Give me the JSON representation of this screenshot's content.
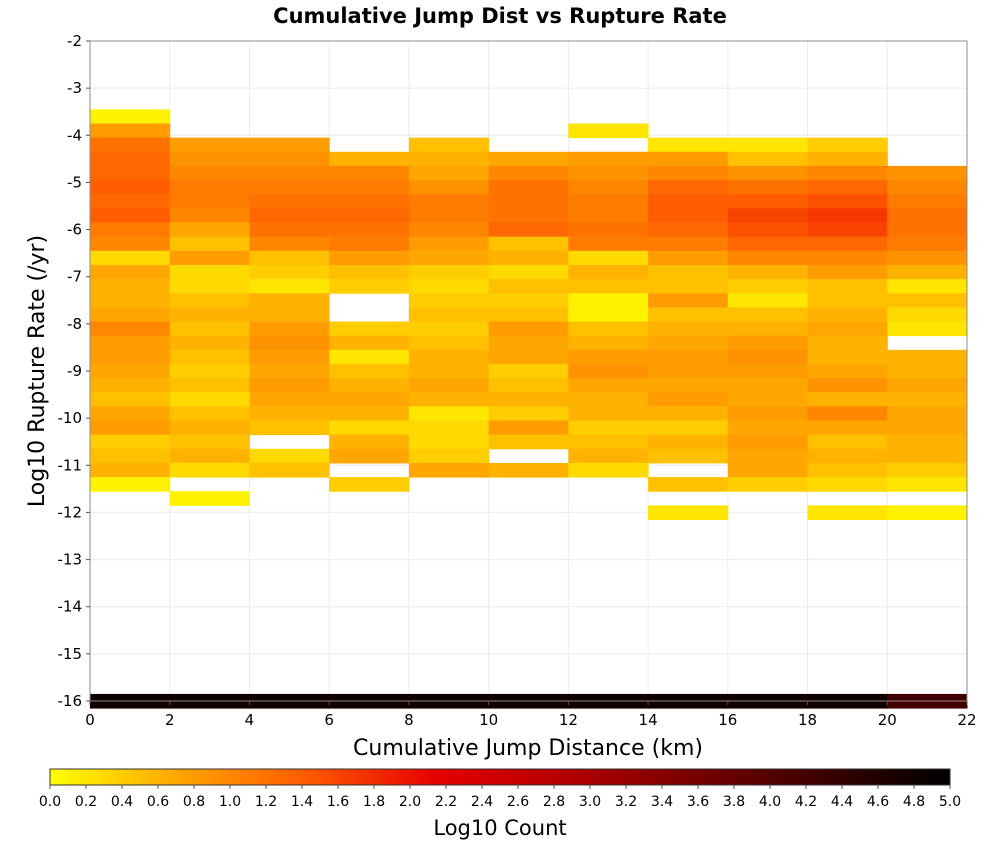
{
  "chart_data": {
    "type": "heatmap",
    "title": "Cumulative Jump Dist vs Rupture Rate",
    "xlabel": "Cumulative Jump Distance (km)",
    "ylabel": "Log10 Rupture Rate (/yr)",
    "xlim": [
      0,
      22
    ],
    "ylim": [
      -16,
      -2
    ],
    "x_ticks": [
      0,
      2,
      4,
      6,
      8,
      10,
      12,
      14,
      16,
      18,
      20,
      22
    ],
    "y_ticks": [
      -2,
      -3,
      -4,
      -5,
      -6,
      -7,
      -8,
      -9,
      -10,
      -11,
      -12,
      -13,
      -14,
      -15,
      -16
    ],
    "x_bin_width": 2,
    "y_bin_height": 0.3,
    "grid": true,
    "colorbar": {
      "label": "Log10 Count",
      "min": 0.0,
      "max": 5.0,
      "ticks": [
        "0.0",
        "0.2",
        "0.4",
        "0.6",
        "0.8",
        "1.0",
        "1.2",
        "1.4",
        "1.6",
        "1.8",
        "2.0",
        "2.2",
        "2.4",
        "2.6",
        "2.8",
        "3.0",
        "3.2",
        "3.4",
        "3.6",
        "3.8",
        "4.0",
        "4.2",
        "4.4",
        "4.6",
        "4.8",
        "5.0"
      ],
      "colors": [
        "#ffff00",
        "#ffa500",
        "#ff5a00",
        "#e60000",
        "#b40000",
        "#780000",
        "#3c0000",
        "#000000"
      ],
      "placement": "bottom"
    },
    "columns": [
      {
        "x0": 0,
        "cells": [
          [
            -3.6,
            0.1
          ],
          [
            -3.9,
            0.8
          ],
          [
            -4.2,
            1.2
          ],
          [
            -4.5,
            1.3
          ],
          [
            -4.8,
            1.3
          ],
          [
            -5.1,
            1.4
          ],
          [
            -5.4,
            1.3
          ],
          [
            -5.7,
            1.4
          ],
          [
            -6.0,
            1.1
          ],
          [
            -6.3,
            1.0
          ],
          [
            -6.6,
            0.3
          ],
          [
            -6.9,
            0.7
          ],
          [
            -7.2,
            0.6
          ],
          [
            -7.5,
            0.6
          ],
          [
            -7.8,
            0.7
          ],
          [
            -8.1,
            1.0
          ],
          [
            -8.4,
            0.8
          ],
          [
            -8.7,
            0.8
          ],
          [
            -9.0,
            0.7
          ],
          [
            -9.3,
            0.6
          ],
          [
            -9.6,
            0.5
          ],
          [
            -9.9,
            0.7
          ],
          [
            -10.2,
            0.8
          ],
          [
            -10.5,
            0.4
          ],
          [
            -10.8,
            0.5
          ],
          [
            -11.1,
            0.6
          ],
          [
            -11.4,
            0.1
          ],
          [
            -16.0,
            4.8
          ]
        ]
      },
      {
        "x0": 2,
        "cells": [
          [
            -4.2,
            0.8
          ],
          [
            -4.5,
            0.9
          ],
          [
            -4.8,
            1.0
          ],
          [
            -5.1,
            1.1
          ],
          [
            -5.4,
            1.1
          ],
          [
            -5.7,
            1.0
          ],
          [
            -6.0,
            0.7
          ],
          [
            -6.3,
            0.5
          ],
          [
            -6.6,
            0.8
          ],
          [
            -6.9,
            0.3
          ],
          [
            -7.2,
            0.3
          ],
          [
            -7.5,
            0.5
          ],
          [
            -7.8,
            0.6
          ],
          [
            -8.1,
            0.5
          ],
          [
            -8.4,
            0.6
          ],
          [
            -8.7,
            0.5
          ],
          [
            -9.0,
            0.4
          ],
          [
            -9.3,
            0.5
          ],
          [
            -9.6,
            0.3
          ],
          [
            -9.9,
            0.5
          ],
          [
            -10.2,
            0.6
          ],
          [
            -10.5,
            0.5
          ],
          [
            -10.8,
            0.6
          ],
          [
            -11.1,
            0.3
          ],
          [
            -11.7,
            0.1
          ],
          [
            -16.0,
            4.8
          ]
        ]
      },
      {
        "x0": 4,
        "cells": [
          [
            -4.2,
            0.8
          ],
          [
            -4.5,
            0.9
          ],
          [
            -4.8,
            1.0
          ],
          [
            -5.1,
            1.1
          ],
          [
            -5.4,
            1.2
          ],
          [
            -5.7,
            1.3
          ],
          [
            -6.0,
            1.2
          ],
          [
            -6.3,
            1.0
          ],
          [
            -6.6,
            0.5
          ],
          [
            -6.9,
            0.4
          ],
          [
            -7.2,
            0.2
          ],
          [
            -7.5,
            0.6
          ],
          [
            -7.8,
            0.6
          ],
          [
            -8.1,
            0.8
          ],
          [
            -8.4,
            0.9
          ],
          [
            -8.7,
            0.8
          ],
          [
            -9.0,
            0.7
          ],
          [
            -9.3,
            0.8
          ],
          [
            -9.6,
            0.7
          ],
          [
            -9.9,
            0.6
          ],
          [
            -10.2,
            0.5
          ],
          [
            -10.8,
            0.3
          ],
          [
            -11.1,
            0.5
          ],
          [
            -16.0,
            4.8
          ]
        ]
      },
      {
        "x0": 6,
        "cells": [
          [
            -4.5,
            0.6
          ],
          [
            -4.8,
            1.0
          ],
          [
            -5.1,
            1.1
          ],
          [
            -5.4,
            1.2
          ],
          [
            -5.7,
            1.3
          ],
          [
            -6.0,
            1.2
          ],
          [
            -6.3,
            1.1
          ],
          [
            -6.6,
            0.8
          ],
          [
            -6.9,
            0.5
          ],
          [
            -7.2,
            0.4
          ],
          [
            -8.1,
            0.4
          ],
          [
            -8.4,
            0.6
          ],
          [
            -8.7,
            0.2
          ],
          [
            -9.0,
            0.5
          ],
          [
            -9.3,
            0.6
          ],
          [
            -9.6,
            0.7
          ],
          [
            -9.9,
            0.6
          ],
          [
            -10.2,
            0.3
          ],
          [
            -10.5,
            0.6
          ],
          [
            -10.8,
            0.7
          ],
          [
            -11.4,
            0.4
          ],
          [
            -16.0,
            4.8
          ]
        ]
      },
      {
        "x0": 8,
        "cells": [
          [
            -4.2,
            0.5
          ],
          [
            -4.5,
            0.6
          ],
          [
            -4.8,
            0.7
          ],
          [
            -5.1,
            0.9
          ],
          [
            -5.4,
            1.1
          ],
          [
            -5.7,
            1.1
          ],
          [
            -6.0,
            1.0
          ],
          [
            -6.3,
            0.8
          ],
          [
            -6.6,
            0.7
          ],
          [
            -6.9,
            0.4
          ],
          [
            -7.2,
            0.3
          ],
          [
            -7.5,
            0.4
          ],
          [
            -7.8,
            0.5
          ],
          [
            -8.1,
            0.4
          ],
          [
            -8.4,
            0.5
          ],
          [
            -8.7,
            0.6
          ],
          [
            -9.0,
            0.6
          ],
          [
            -9.3,
            0.7
          ],
          [
            -9.6,
            0.6
          ],
          [
            -9.9,
            0.2
          ],
          [
            -10.2,
            0.3
          ],
          [
            -10.5,
            0.3
          ],
          [
            -10.8,
            0.4
          ],
          [
            -11.1,
            0.7
          ],
          [
            -16.0,
            4.8
          ]
        ]
      },
      {
        "x0": 10,
        "cells": [
          [
            -4.5,
            0.7
          ],
          [
            -4.8,
            1.0
          ],
          [
            -5.1,
            1.2
          ],
          [
            -5.4,
            1.2
          ],
          [
            -5.7,
            1.2
          ],
          [
            -6.0,
            1.3
          ],
          [
            -6.3,
            0.5
          ],
          [
            -6.6,
            0.6
          ],
          [
            -6.9,
            0.3
          ],
          [
            -7.2,
            0.5
          ],
          [
            -7.5,
            0.4
          ],
          [
            -7.8,
            0.5
          ],
          [
            -8.1,
            0.8
          ],
          [
            -8.4,
            0.7
          ],
          [
            -8.7,
            0.7
          ],
          [
            -9.0,
            0.4
          ],
          [
            -9.3,
            0.5
          ],
          [
            -9.6,
            0.6
          ],
          [
            -9.9,
            0.4
          ],
          [
            -10.2,
            0.8
          ],
          [
            -10.5,
            0.5
          ],
          [
            -11.1,
            0.6
          ],
          [
            -16.0,
            4.8
          ]
        ]
      },
      {
        "x0": 12,
        "cells": [
          [
            -3.9,
            0.2
          ],
          [
            -4.5,
            0.8
          ],
          [
            -4.8,
            0.9
          ],
          [
            -5.1,
            1.0
          ],
          [
            -5.4,
            1.1
          ],
          [
            -5.7,
            1.1
          ],
          [
            -6.0,
            1.2
          ],
          [
            -6.3,
            1.1
          ],
          [
            -6.6,
            0.3
          ],
          [
            -6.9,
            0.6
          ],
          [
            -7.2,
            0.5
          ],
          [
            -7.5,
            0.1
          ],
          [
            -7.8,
            0.1
          ],
          [
            -8.1,
            0.5
          ],
          [
            -8.4,
            0.6
          ],
          [
            -8.7,
            0.8
          ],
          [
            -9.0,
            0.9
          ],
          [
            -9.3,
            0.7
          ],
          [
            -9.6,
            0.6
          ],
          [
            -9.9,
            0.6
          ],
          [
            -10.2,
            0.4
          ],
          [
            -10.5,
            0.5
          ],
          [
            -10.8,
            0.6
          ],
          [
            -11.1,
            0.3
          ],
          [
            -16.0,
            4.8
          ]
        ]
      },
      {
        "x0": 14,
        "cells": [
          [
            -4.2,
            0.2
          ],
          [
            -4.5,
            0.8
          ],
          [
            -4.8,
            1.0
          ],
          [
            -5.1,
            1.3
          ],
          [
            -5.4,
            1.4
          ],
          [
            -5.7,
            1.4
          ],
          [
            -6.0,
            1.3
          ],
          [
            -6.3,
            1.1
          ],
          [
            -6.6,
            0.8
          ],
          [
            -6.9,
            0.5
          ],
          [
            -7.2,
            0.5
          ],
          [
            -7.5,
            0.8
          ],
          [
            -7.8,
            0.5
          ],
          [
            -8.1,
            0.6
          ],
          [
            -8.4,
            0.7
          ],
          [
            -8.7,
            0.8
          ],
          [
            -9.0,
            0.8
          ],
          [
            -9.3,
            0.7
          ],
          [
            -9.6,
            0.8
          ],
          [
            -9.9,
            0.6
          ],
          [
            -10.2,
            0.4
          ],
          [
            -10.5,
            0.6
          ],
          [
            -10.8,
            0.5
          ],
          [
            -11.4,
            0.5
          ],
          [
            -12.0,
            0.2
          ],
          [
            -16.0,
            4.8
          ]
        ]
      },
      {
        "x0": 16,
        "cells": [
          [
            -4.2,
            0.2
          ],
          [
            -4.5,
            0.5
          ],
          [
            -4.8,
            0.9
          ],
          [
            -5.1,
            1.2
          ],
          [
            -5.4,
            1.4
          ],
          [
            -5.7,
            1.6
          ],
          [
            -6.0,
            1.5
          ],
          [
            -6.3,
            1.3
          ],
          [
            -6.6,
            1.0
          ],
          [
            -6.9,
            0.6
          ],
          [
            -7.2,
            0.4
          ],
          [
            -7.5,
            0.2
          ],
          [
            -7.8,
            0.5
          ],
          [
            -8.1,
            0.6
          ],
          [
            -8.4,
            0.8
          ],
          [
            -8.7,
            0.9
          ],
          [
            -9.0,
            0.8
          ],
          [
            -9.3,
            0.7
          ],
          [
            -9.6,
            0.7
          ],
          [
            -9.9,
            0.8
          ],
          [
            -10.2,
            0.7
          ],
          [
            -10.5,
            0.8
          ],
          [
            -10.8,
            0.7
          ],
          [
            -11.1,
            0.7
          ],
          [
            -11.4,
            0.4
          ],
          [
            -16.0,
            4.8
          ]
        ]
      },
      {
        "x0": 18,
        "cells": [
          [
            -4.2,
            0.4
          ],
          [
            -4.5,
            0.6
          ],
          [
            -4.8,
            1.0
          ],
          [
            -5.1,
            1.3
          ],
          [
            -5.4,
            1.5
          ],
          [
            -5.7,
            1.7
          ],
          [
            -6.0,
            1.6
          ],
          [
            -6.3,
            1.3
          ],
          [
            -6.6,
            1.0
          ],
          [
            -6.9,
            0.8
          ],
          [
            -7.2,
            0.5
          ],
          [
            -7.5,
            0.5
          ],
          [
            -7.8,
            0.6
          ],
          [
            -8.1,
            0.7
          ],
          [
            -8.4,
            0.6
          ],
          [
            -8.7,
            0.6
          ],
          [
            -9.0,
            0.7
          ],
          [
            -9.3,
            0.9
          ],
          [
            -9.6,
            0.6
          ],
          [
            -9.9,
            1.0
          ],
          [
            -10.2,
            0.7
          ],
          [
            -10.5,
            0.5
          ],
          [
            -10.8,
            0.6
          ],
          [
            -11.1,
            0.5
          ],
          [
            -11.4,
            0.3
          ],
          [
            -12.0,
            0.2
          ],
          [
            -16.0,
            4.8
          ]
        ]
      },
      {
        "x0": 20,
        "cells": [
          [
            -4.8,
            0.9
          ],
          [
            -5.1,
            1.0
          ],
          [
            -5.4,
            1.1
          ],
          [
            -5.7,
            1.2
          ],
          [
            -6.0,
            1.2
          ],
          [
            -6.3,
            1.1
          ],
          [
            -6.6,
            0.9
          ],
          [
            -6.9,
            0.6
          ],
          [
            -7.2,
            0.2
          ],
          [
            -7.5,
            0.5
          ],
          [
            -7.8,
            0.3
          ],
          [
            -8.1,
            0.2
          ],
          [
            -8.7,
            0.6
          ],
          [
            -9.0,
            0.6
          ],
          [
            -9.3,
            0.7
          ],
          [
            -9.6,
            0.6
          ],
          [
            -9.9,
            0.7
          ],
          [
            -10.2,
            0.7
          ],
          [
            -10.5,
            0.6
          ],
          [
            -10.8,
            0.6
          ],
          [
            -11.1,
            0.4
          ],
          [
            -11.4,
            0.2
          ],
          [
            -12.0,
            0.1
          ],
          [
            -16.0,
            4.2
          ]
        ]
      }
    ]
  }
}
